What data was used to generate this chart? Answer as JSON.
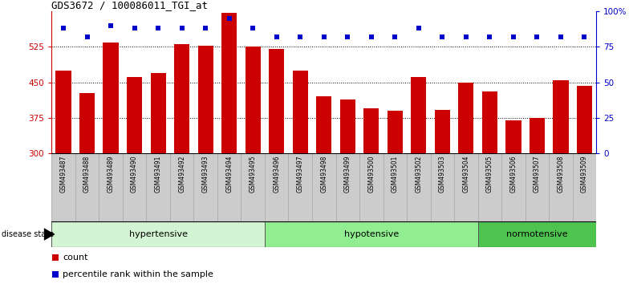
{
  "title": "GDS3672 / 100086011_TGI_at",
  "samples": [
    "GSM493487",
    "GSM493488",
    "GSM493489",
    "GSM493490",
    "GSM493491",
    "GSM493492",
    "GSM493493",
    "GSM493494",
    "GSM493495",
    "GSM493496",
    "GSM493497",
    "GSM493498",
    "GSM493499",
    "GSM493500",
    "GSM493501",
    "GSM493502",
    "GSM493503",
    "GSM493504",
    "GSM493505",
    "GSM493506",
    "GSM493507",
    "GSM493508",
    "GSM493509"
  ],
  "counts": [
    475,
    428,
    535,
    462,
    470,
    530,
    527,
    597,
    525,
    520,
    475,
    420,
    413,
    395,
    390,
    462,
    392,
    450,
    430,
    370,
    375,
    455,
    443
  ],
  "percentile_ranks": [
    88,
    82,
    90,
    88,
    88,
    88,
    88,
    95,
    88,
    82,
    82,
    82,
    82,
    82,
    82,
    88,
    82,
    82,
    82,
    82,
    82,
    82,
    82
  ],
  "bar_color": "#cc0000",
  "dot_color": "#0000cc",
  "ylim_left": [
    300,
    600
  ],
  "yticks_left": [
    300,
    375,
    450,
    525
  ],
  "ylim_right": [
    0,
    100
  ],
  "yticks_right": [
    0,
    25,
    50,
    75,
    100
  ],
  "groups": [
    {
      "label": "hypertensive",
      "start": 0,
      "end": 8,
      "color": "#d4f5d4"
    },
    {
      "label": "hypotensive",
      "start": 9,
      "end": 17,
      "color": "#90ee90"
    },
    {
      "label": "normotensive",
      "start": 18,
      "end": 22,
      "color": "#4ec44e"
    }
  ],
  "xlabel_bg_color": "#cccccc",
  "background_color": "#ffffff"
}
